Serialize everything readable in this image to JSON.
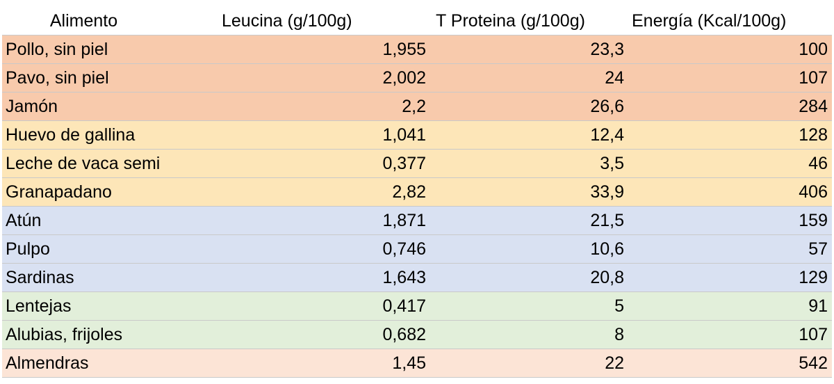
{
  "table": {
    "headers": {
      "food": "Alimento",
      "leucine": "Leucina (g/100g)",
      "protein": "T Proteina (g/100g)",
      "energy": "Energía (Kcal/100g)"
    },
    "rows": [
      {
        "food": "Pollo, sin piel",
        "leucine": "1,955",
        "protein": "23,3",
        "energy": "100",
        "group_color": "#f8caac"
      },
      {
        "food": "Pavo, sin piel",
        "leucine": "2,002",
        "protein": "24",
        "energy": "107",
        "group_color": "#f8caac"
      },
      {
        "food": "Jamón",
        "leucine": "2,2",
        "protein": "26,6",
        "energy": "284",
        "group_color": "#f8caac"
      },
      {
        "food": "Huevo de gallina",
        "leucine": "1,041",
        "protein": "12,4",
        "energy": "128",
        "group_color": "#fde6b8"
      },
      {
        "food": "Leche de vaca semi",
        "leucine": "0,377",
        "protein": "3,5",
        "energy": "46",
        "group_color": "#fde6b8"
      },
      {
        "food": "Granapadano",
        "leucine": "2,82",
        "protein": "33,9",
        "energy": "406",
        "group_color": "#fde6b8"
      },
      {
        "food": "Atún",
        "leucine": "1,871",
        "protein": "21,5",
        "energy": "159",
        "group_color": "#d9e1f2"
      },
      {
        "food": "Pulpo",
        "leucine": "0,746",
        "protein": "10,6",
        "energy": "57",
        "group_color": "#d9e1f2"
      },
      {
        "food": "Sardinas",
        "leucine": "1,643",
        "protein": "20,8",
        "energy": "129",
        "group_color": "#d9e1f2"
      },
      {
        "food": "Lentejas",
        "leucine": "0,417",
        "protein": "5",
        "energy": "91",
        "group_color": "#e2efda"
      },
      {
        "food": "Alubias, frijoles",
        "leucine": "0,682",
        "protein": "8",
        "energy": "107",
        "group_color": "#e2efda"
      },
      {
        "food": "Almendras",
        "leucine": "1,45",
        "protein": "22",
        "energy": "542",
        "group_color": "#fce4d6"
      }
    ]
  }
}
